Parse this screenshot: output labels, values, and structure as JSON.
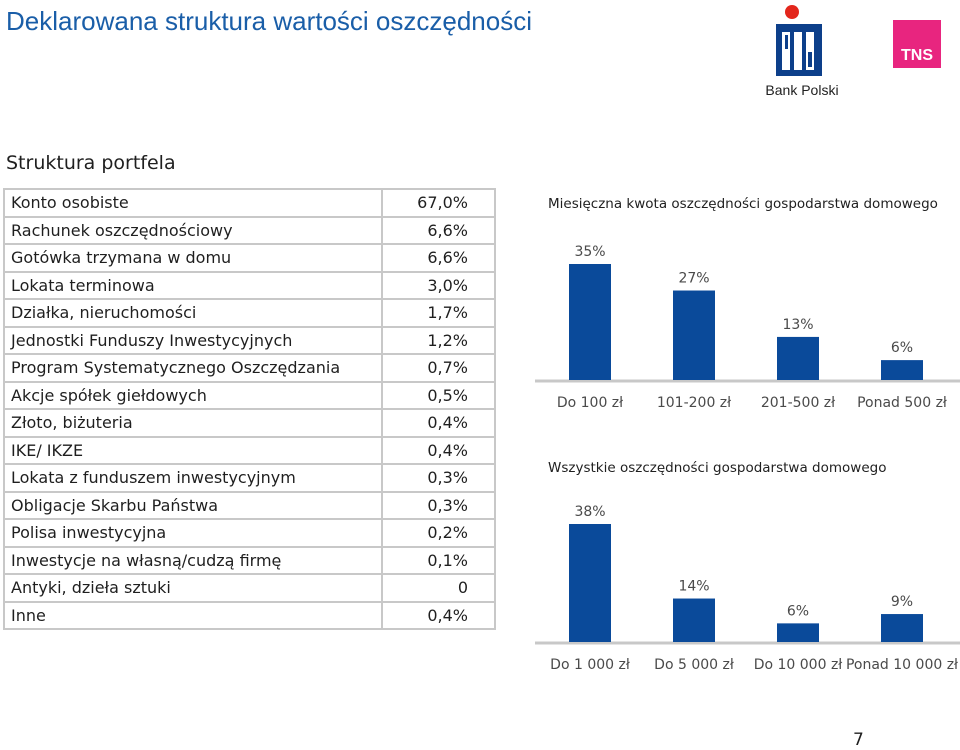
{
  "header": {
    "title": "Deklarowana struktura wartości oszczędności",
    "bank_label": "Bank Polski",
    "tns_label": "TNS"
  },
  "portfolio": {
    "title": "Struktura portfela",
    "rows": [
      {
        "label": "Konto osobiste",
        "value": "67,0%"
      },
      {
        "label": "Rachunek oszczędnościowy",
        "value": "6,6%"
      },
      {
        "label": "Gotówka trzymana w domu",
        "value": "6,6%"
      },
      {
        "label": "Lokata terminowa",
        "value": "3,0%"
      },
      {
        "label": "Działka, nieruchomości",
        "value": "1,7%"
      },
      {
        "label": "Jednostki Funduszy Inwestycyjnych",
        "value": "1,2%"
      },
      {
        "label": "Program Systematycznego Oszczędzania",
        "value": "0,7%"
      },
      {
        "label": "Akcje spółek giełdowych",
        "value": "0,5%"
      },
      {
        "label": "Złoto, biżuteria",
        "value": "0,4%"
      },
      {
        "label": "IKE/ IKZE",
        "value": "0,4%"
      },
      {
        "label": "Lokata z funduszem inwestycyjnym",
        "value": "0,3%"
      },
      {
        "label": "Obligacje Skarbu Państwa",
        "value": "0,3%"
      },
      {
        "label": "Polisa inwestycyjna",
        "value": "0,2%"
      },
      {
        "label": "Inwestycje na własną/cudzą firmę",
        "value": "0,1%"
      },
      {
        "label": "Antyki, dzieła sztuki",
        "value": "0"
      },
      {
        "label": "Inne",
        "value": "0,4%"
      }
    ]
  },
  "chart_data": [
    {
      "type": "bar",
      "title": "Miesięczna kwota oszczędności gospodarstwa domowego",
      "categories": [
        "Do 100 zł",
        "101-200 zł",
        "201-500 zł",
        "Ponad 500 zł"
      ],
      "values": [
        35,
        27,
        13,
        6
      ],
      "data_labels": [
        "35%",
        "27%",
        "13%",
        "6%"
      ],
      "ylim": [
        0,
        35
      ],
      "grid": false,
      "color": "#0a4a9a"
    },
    {
      "type": "bar",
      "title": "Wszystkie oszczędności gospodarstwa domowego",
      "categories": [
        "Do 1 000 zł",
        "Do 5 000 zł",
        "Do 10 000 zł",
        "Ponad 10 000 zł"
      ],
      "values": [
        38,
        14,
        6,
        9
      ],
      "data_labels": [
        "38%",
        "14%",
        "6%",
        "9%"
      ],
      "ylim": [
        0,
        38
      ],
      "grid": false,
      "color": "#0a4a9a"
    }
  ],
  "footer": {
    "page_number": "7"
  }
}
